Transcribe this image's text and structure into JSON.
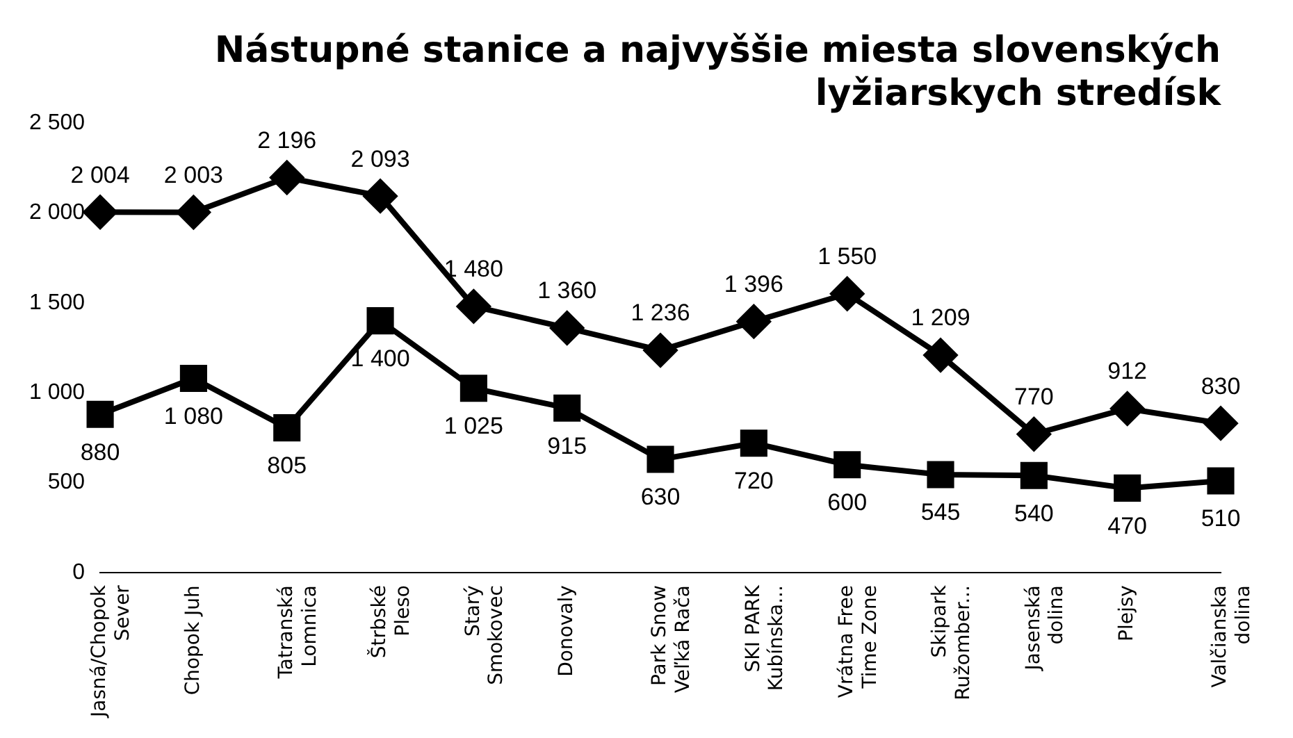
{
  "chart_data": {
    "type": "line",
    "title": "Nástupné stanice a najvyššie miesta slovenských lyžiarskych stredísk",
    "categories": [
      "Jasná/Chopok Sever",
      "Chopok Juh",
      "Tatranská Lomnica",
      "Štrbské Pleso",
      "Starý Smokovec",
      "Donovaly",
      "Park Snow Veľká Rača",
      "SKI PARK Kubínska...",
      "Vrátna Free Time Zone",
      "Skipark Ružomber...",
      "Jasenská dolina",
      "Plejsy",
      "Valčianska dolina"
    ],
    "series": [
      {
        "color": "#000000",
        "marker": "diamond",
        "values": [
          2004,
          2003,
          2196,
          2093,
          1480,
          1360,
          1236,
          1396,
          1550,
          1209,
          770,
          912,
          830
        ],
        "value_labels": [
          "2 004",
          "2 003",
          "2 196",
          "2 093",
          "1 480",
          "1 360",
          "1 236",
          "1 396",
          "1 550",
          "1 209",
          "770",
          "912",
          "830"
        ]
      },
      {
        "color": "#000000",
        "marker": "square",
        "values": [
          880,
          1080,
          805,
          1400,
          1025,
          915,
          630,
          720,
          600,
          545,
          540,
          470,
          510
        ],
        "value_labels": [
          "880",
          "1 080",
          "805",
          "1 400",
          "1 025",
          "915",
          "630",
          "720",
          "600",
          "545",
          "540",
          "470",
          "510"
        ]
      }
    ],
    "ylim": [
      0,
      2500
    ],
    "yticks": [
      0,
      500,
      {
        "value": 1000,
        "label": "1 000"
      },
      {
        "value": 1500,
        "label": "1 500"
      },
      {
        "value": 2000,
        "label": "2 000"
      },
      {
        "value": 2500,
        "label": "2 500"
      }
    ],
    "grid": false,
    "legend": false,
    "line_style": "solid"
  }
}
